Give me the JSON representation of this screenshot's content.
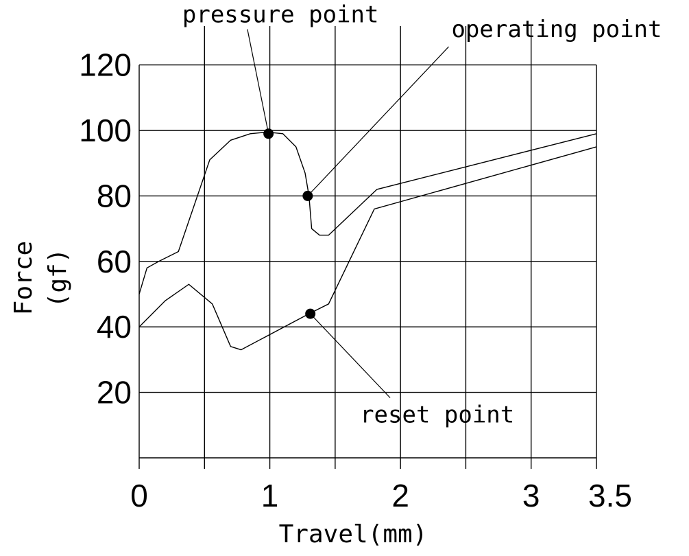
{
  "chart_data": {
    "type": "line",
    "title": "",
    "xlabel": "Travel(mm)",
    "ylabel": "Force\n(gf)",
    "ylabel_lines": [
      "Force",
      "(gf)"
    ],
    "xlim": [
      0,
      3.5
    ],
    "ylim": [
      0,
      125
    ],
    "grid": true,
    "x_grid": [
      0,
      0.5,
      1,
      1.5,
      2,
      2.5,
      3,
      3.5
    ],
    "y_grid": [
      0,
      20,
      40,
      60,
      80,
      100,
      120
    ],
    "x_ticks": [
      {
        "value": 0,
        "label": "0"
      },
      {
        "value": 1,
        "label": "1"
      },
      {
        "value": 2,
        "label": "2"
      },
      {
        "value": 3,
        "label": "3"
      },
      {
        "value": 3.5,
        "label": "3.5"
      }
    ],
    "y_ticks": [
      {
        "value": 20,
        "label": "20"
      },
      {
        "value": 40,
        "label": "40"
      },
      {
        "value": 60,
        "label": "60"
      },
      {
        "value": 80,
        "label": "80"
      },
      {
        "value": 100,
        "label": "100"
      },
      {
        "value": 120,
        "label": "120"
      }
    ],
    "series": [
      {
        "points": [
          [
            0,
            50
          ],
          [
            0.06,
            58
          ],
          [
            0.15,
            60
          ],
          [
            0.3,
            63
          ],
          [
            0.54,
            91
          ],
          [
            0.7,
            97
          ],
          [
            0.85,
            99
          ],
          [
            0.98,
            99.5
          ],
          [
            1.1,
            99
          ],
          [
            1.2,
            95
          ],
          [
            1.27,
            87
          ],
          [
            1.3,
            80
          ],
          [
            1.32,
            70
          ],
          [
            1.38,
            68
          ],
          [
            1.45,
            68
          ],
          [
            1.82,
            82
          ],
          [
            3.5,
            99
          ]
        ]
      },
      {
        "points": [
          [
            0,
            40
          ],
          [
            0.2,
            48
          ],
          [
            0.38,
            53
          ],
          [
            0.56,
            47
          ],
          [
            0.7,
            34
          ],
          [
            0.78,
            33
          ],
          [
            1.3,
            44
          ],
          [
            1.45,
            47
          ],
          [
            1.8,
            76
          ],
          [
            3.5,
            95
          ]
        ]
      }
    ],
    "annotations": [
      {
        "text": "pressure point",
        "point": [
          0.99,
          99
        ],
        "label_x": 0.33,
        "label_y": 133
      },
      {
        "text": "operating point",
        "point": [
          1.29,
          80
        ],
        "label_x": 2.39,
        "label_y": 128.5
      },
      {
        "text": "reset point",
        "point": [
          1.31,
          44
        ],
        "label_x": 1.69,
        "label_y": 10.8
      }
    ]
  }
}
